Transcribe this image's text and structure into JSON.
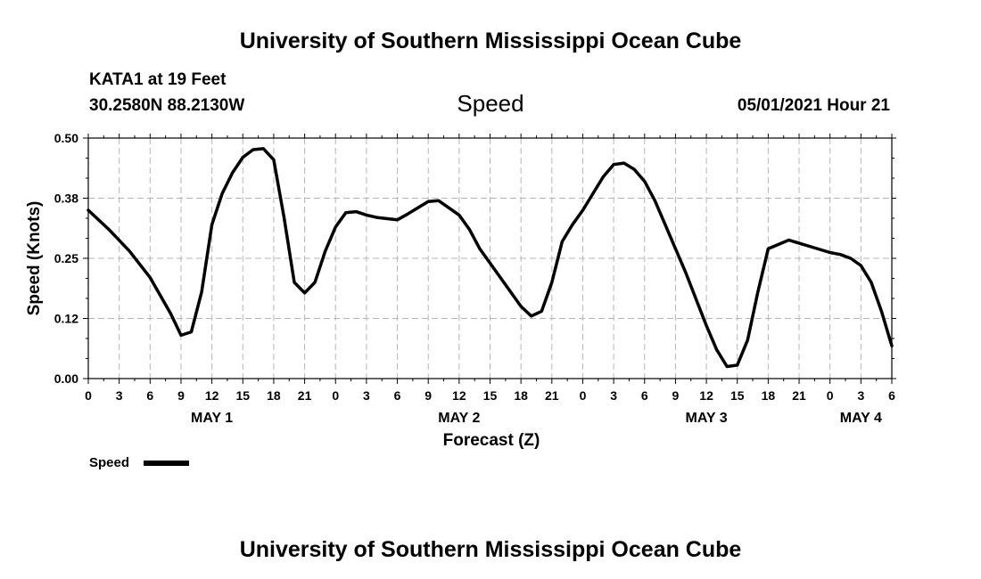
{
  "header": {
    "title": "University of Southern Mississippi Ocean Cube",
    "station": "KATA1 at 19 Feet",
    "coords": "30.2580N  88.2130W",
    "variable": "Speed",
    "datetime": "05/01/2021 Hour 21"
  },
  "footer": {
    "title": "University of Southern Mississippi Ocean Cube"
  },
  "legend": {
    "label": "Speed"
  },
  "chart_data": {
    "type": "line",
    "title": "Speed",
    "xlabel": "Forecast (Z)",
    "ylabel": "Speed (Knots)",
    "xlim": [
      0,
      78
    ],
    "ylim": [
      0,
      0.5
    ],
    "grid": true,
    "legend_position": "bottom-left",
    "y_ticks": [
      {
        "value": 0,
        "label": "0.00"
      },
      {
        "value": 0.125,
        "label": "0.12"
      },
      {
        "value": 0.25,
        "label": "0.25"
      },
      {
        "value": 0.375,
        "label": "0.38"
      },
      {
        "value": 0.5,
        "label": "0.50"
      }
    ],
    "x_ticks": [
      {
        "value": 0,
        "label": "0"
      },
      {
        "value": 3,
        "label": "3"
      },
      {
        "value": 6,
        "label": "6"
      },
      {
        "value": 9,
        "label": "9"
      },
      {
        "value": 12,
        "label": "12"
      },
      {
        "value": 15,
        "label": "15"
      },
      {
        "value": 18,
        "label": "18"
      },
      {
        "value": 21,
        "label": "21"
      },
      {
        "value": 24,
        "label": "0"
      },
      {
        "value": 27,
        "label": "3"
      },
      {
        "value": 30,
        "label": "6"
      },
      {
        "value": 33,
        "label": "9"
      },
      {
        "value": 36,
        "label": "12"
      },
      {
        "value": 39,
        "label": "15"
      },
      {
        "value": 42,
        "label": "18"
      },
      {
        "value": 45,
        "label": "21"
      },
      {
        "value": 48,
        "label": "0"
      },
      {
        "value": 51,
        "label": "3"
      },
      {
        "value": 54,
        "label": "6"
      },
      {
        "value": 57,
        "label": "9"
      },
      {
        "value": 60,
        "label": "12"
      },
      {
        "value": 63,
        "label": "15"
      },
      {
        "value": 66,
        "label": "18"
      },
      {
        "value": 69,
        "label": "21"
      },
      {
        "value": 72,
        "label": "0"
      },
      {
        "value": 75,
        "label": "3"
      },
      {
        "value": 78,
        "label": "6"
      }
    ],
    "day_labels": [
      {
        "value": 12,
        "label": "MAY 1"
      },
      {
        "value": 36,
        "label": "MAY 2"
      },
      {
        "value": 60,
        "label": "MAY 3"
      },
      {
        "value": 75,
        "label": "MAY 4"
      }
    ],
    "series": [
      {
        "name": "Speed",
        "x": [
          0,
          2,
          4,
          6,
          8,
          9,
          10,
          11,
          12,
          13,
          14,
          15,
          16,
          17,
          18,
          19,
          20,
          21,
          22,
          23,
          24,
          25,
          26,
          27,
          28,
          30,
          31,
          32,
          33,
          34,
          35,
          36,
          37,
          38,
          39,
          40,
          42,
          43,
          44,
          45,
          46,
          47,
          48,
          49,
          50,
          51,
          52,
          53,
          54,
          55,
          56,
          57,
          58,
          59,
          60,
          61,
          62,
          63,
          64,
          65,
          66,
          68,
          70,
          72,
          73,
          74,
          75,
          76,
          77,
          78
        ],
        "values": [
          0.35,
          0.31,
          0.265,
          0.21,
          0.135,
          0.09,
          0.097,
          0.18,
          0.32,
          0.385,
          0.428,
          0.46,
          0.476,
          0.478,
          0.455,
          0.335,
          0.2,
          0.178,
          0.2,
          0.265,
          0.315,
          0.345,
          0.347,
          0.34,
          0.335,
          0.33,
          0.342,
          0.355,
          0.368,
          0.37,
          0.355,
          0.34,
          0.31,
          0.27,
          0.24,
          0.21,
          0.15,
          0.13,
          0.14,
          0.2,
          0.285,
          0.32,
          0.35,
          0.385,
          0.42,
          0.445,
          0.448,
          0.435,
          0.41,
          0.37,
          0.32,
          0.27,
          0.22,
          0.165,
          0.11,
          0.06,
          0.025,
          0.028,
          0.08,
          0.18,
          0.27,
          0.288,
          0.275,
          0.262,
          0.258,
          0.25,
          0.235,
          0.2,
          0.14,
          0.068
        ]
      }
    ]
  }
}
